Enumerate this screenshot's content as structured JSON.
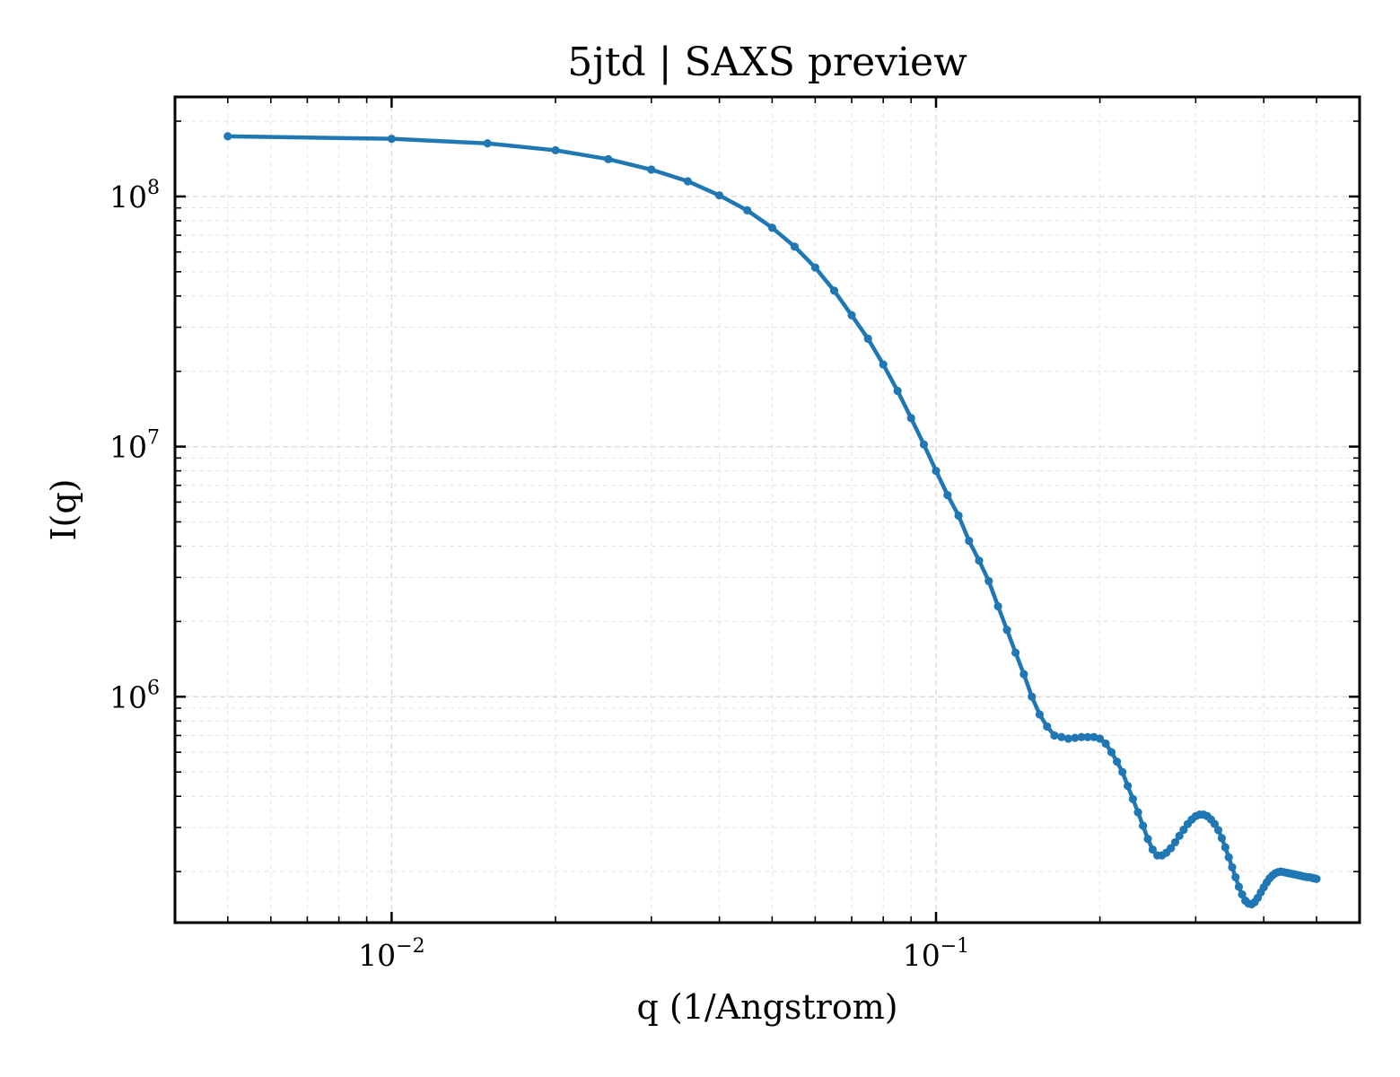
{
  "colors": {
    "series": "#1f77b4",
    "grid": "#d8d8d8",
    "frame": "#000000"
  },
  "chart_data": {
    "type": "line",
    "title": "5jtd | SAXS preview",
    "xlabel": "q (1/Angstrom)",
    "ylabel": "I(q)",
    "xscale": "log",
    "yscale": "log",
    "xlim": [
      0.004,
      0.6
    ],
    "ylim": [
      125000,
      250000000
    ],
    "grid": "on (major and minor, dashed)",
    "x_ticks": [
      {
        "value": 0.01,
        "base": "10",
        "exp": "−2"
      },
      {
        "value": 0.1,
        "base": "10",
        "exp": "−1"
      }
    ],
    "y_ticks": [
      {
        "value": 1000000,
        "base": "10",
        "exp": "6"
      },
      {
        "value": 10000000,
        "base": "10",
        "exp": "7"
      },
      {
        "value": 100000000,
        "base": "10",
        "exp": "8"
      }
    ],
    "series": [
      {
        "marker": "dot",
        "color": "#1f77b4",
        "x": [
          0.005,
          0.01,
          0.015,
          0.02,
          0.025,
          0.03,
          0.035,
          0.04,
          0.045,
          0.05,
          0.055,
          0.06,
          0.065,
          0.07,
          0.075,
          0.08,
          0.085,
          0.09,
          0.095,
          0.1,
          0.105,
          0.11,
          0.115,
          0.12,
          0.125,
          0.13,
          0.135,
          0.14,
          0.145,
          0.15,
          0.155,
          0.16,
          0.165,
          0.17,
          0.175,
          0.18,
          0.185,
          0.19,
          0.195,
          0.2,
          0.205,
          0.21,
          0.215,
          0.22,
          0.225,
          0.23,
          0.235,
          0.24,
          0.245,
          0.25,
          0.255,
          0.26,
          0.265,
          0.27,
          0.275,
          0.28,
          0.285,
          0.29,
          0.295,
          0.3,
          0.305,
          0.31,
          0.315,
          0.32,
          0.325,
          0.33,
          0.335,
          0.34,
          0.345,
          0.35,
          0.355,
          0.36,
          0.365,
          0.37,
          0.375,
          0.38,
          0.385,
          0.39,
          0.395,
          0.4,
          0.405,
          0.41,
          0.415,
          0.42,
          0.425,
          0.43,
          0.435,
          0.44,
          0.445,
          0.45,
          0.455,
          0.46,
          0.465,
          0.47,
          0.475,
          0.48,
          0.485,
          0.49,
          0.495,
          0.5
        ],
        "y": [
          174000000,
          170000000,
          163000000,
          153000000,
          141000000,
          128000000,
          115000000,
          101000000,
          88000000,
          75000000,
          63000000,
          52000000,
          42000000,
          33500000,
          27000000,
          21300000,
          16700000,
          13000000,
          10200000,
          8000000,
          6400000,
          5300000,
          4200000,
          3500000,
          2900000,
          2300000,
          1850000,
          1500000,
          1230000,
          1000000,
          850000,
          760000,
          700000,
          690000,
          680000,
          685000,
          690000,
          690000,
          690000,
          680000,
          650000,
          600000,
          550000,
          500000,
          440000,
          390000,
          345000,
          305000,
          270000,
          245000,
          232000,
          232000,
          238000,
          248000,
          262000,
          278000,
          294000,
          310000,
          323000,
          333000,
          338000,
          338000,
          333000,
          323000,
          310000,
          293000,
          272000,
          250000,
          228000,
          208000,
          190000,
          174000,
          162000,
          153000,
          149000,
          148000,
          151000,
          157000,
          165000,
          173000,
          181000,
          188000,
          193000,
          197000,
          199000,
          200000,
          199000,
          198000,
          197000,
          196000,
          195000,
          194000,
          193000,
          192000,
          191000,
          190000,
          190000,
          189000,
          188000,
          187000
        ]
      }
    ]
  }
}
